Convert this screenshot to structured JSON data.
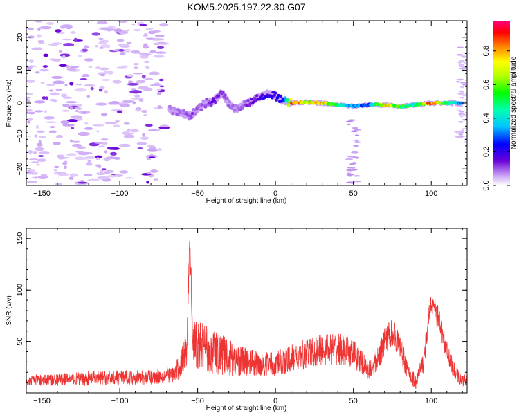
{
  "figure": {
    "title": "KOM5.2025.197.22.30.G07"
  },
  "chart_data": [
    {
      "type": "heatmap",
      "xlabel": "Height of straight line (km)",
      "ylabel": "Frequency (Hz)",
      "xlim": [
        -160,
        123
      ],
      "ylim": [
        -25,
        25
      ],
      "xticks": [
        -150,
        -100,
        -50,
        0,
        50,
        100
      ],
      "yticks": [
        -20,
        -10,
        0,
        10,
        20
      ],
      "grid": false,
      "colorbar": {
        "label": "Normalized spectral amplitude",
        "range": [
          0.0,
          0.98
        ],
        "ticks": [
          0.0,
          0.2,
          0.4,
          0.6,
          0.8
        ],
        "colormap": "rainbow (white, violet, blue, cyan, green, yellow, orange, red, magenta)"
      },
      "noise_region": {
        "x_range": [
          -160,
          -70
        ],
        "y_range": [
          -25,
          25
        ],
        "typical_amplitude": 0.03
      },
      "trace": {
        "x": [
          -68,
          -60,
          -55,
          -50,
          -45,
          -40,
          -35,
          -30,
          -25,
          -20,
          -15,
          -10,
          -5,
          0,
          5,
          10,
          20,
          30,
          40,
          50,
          60,
          70,
          80,
          90,
          100,
          110,
          120
        ],
        "frequency_hz": [
          -2,
          -3,
          -4,
          -2,
          0,
          0.5,
          3,
          0,
          -2,
          0,
          0.5,
          2,
          3,
          2,
          0.5,
          0,
          0.3,
          0,
          -0.5,
          -1,
          -0.5,
          -0.5,
          -1,
          -0.5,
          0,
          0,
          0
        ],
        "amplitude": [
          0.08,
          0.1,
          0.12,
          0.1,
          0.1,
          0.15,
          0.12,
          0.1,
          0.08,
          0.12,
          0.15,
          0.2,
          0.22,
          0.2,
          0.3,
          0.9,
          0.7,
          0.8,
          0.5,
          0.35,
          0.3,
          0.8,
          0.6,
          0.5,
          0.95,
          0.5,
          0.3
        ]
      },
      "side_features": [
        {
          "x": 50,
          "frequency_range_hz": [
            -25,
            -5
          ],
          "amplitude": 0.05
        },
        {
          "x": 120,
          "frequency_range_hz": [
            -12,
            17
          ],
          "amplitude": 0.03
        }
      ]
    },
    {
      "type": "line",
      "xlabel": "Height of straight line (km)",
      "ylabel": "SNR (v/v)",
      "xlim": [
        -160,
        123
      ],
      "ylim": [
        0,
        160
      ],
      "xticks": [
        -150,
        -100,
        -50,
        0,
        50,
        100
      ],
      "yticks": [
        50,
        100,
        150
      ],
      "grid": false,
      "series": [
        {
          "color": "#ee3333",
          "x": [
            -160,
            -140,
            -120,
            -100,
            -80,
            -65,
            -60,
            -57,
            -55,
            -53,
            -50,
            -45,
            -40,
            -30,
            -20,
            -10,
            0,
            10,
            20,
            30,
            40,
            50,
            55,
            60,
            65,
            70,
            75,
            80,
            85,
            90,
            95,
            100,
            105,
            110,
            115,
            120,
            123
          ],
          "y_mean": [
            12,
            13,
            14,
            15,
            15,
            18,
            30,
            45,
            150,
            50,
            45,
            45,
            40,
            35,
            30,
            28,
            28,
            33,
            38,
            42,
            43,
            38,
            30,
            22,
            30,
            50,
            60,
            45,
            20,
            10,
            30,
            90,
            70,
            40,
            20,
            12,
            12
          ],
          "noise_amplitude": [
            5,
            6,
            7,
            7,
            7,
            8,
            15,
            20,
            10,
            20,
            25,
            25,
            22,
            18,
            15,
            12,
            12,
            14,
            15,
            16,
            16,
            14,
            12,
            10,
            12,
            14,
            14,
            12,
            10,
            8,
            10,
            12,
            12,
            10,
            8,
            6,
            6
          ]
        }
      ]
    }
  ]
}
